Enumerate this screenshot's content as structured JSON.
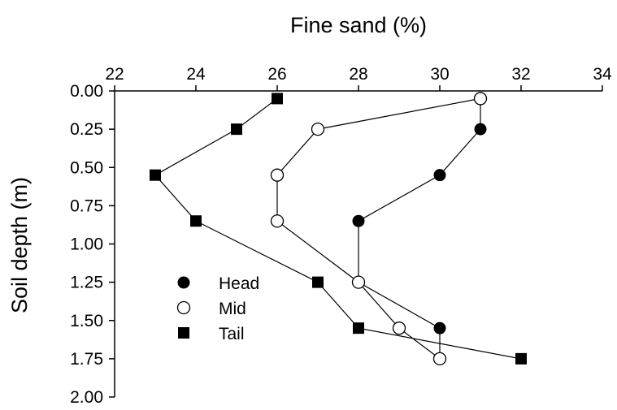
{
  "chart_data": {
    "type": "line",
    "title": "",
    "xlabel": "Fine sand (%)",
    "ylabel": "Soil depth (m)",
    "x_axis_position": "top",
    "y_axis_inverted": true,
    "xlim": [
      22,
      34
    ],
    "ylim": [
      0.0,
      2.0
    ],
    "x_ticks": [
      "22",
      "24",
      "26",
      "28",
      "30",
      "32",
      "34"
    ],
    "y_ticks": [
      "0.00",
      "0.25",
      "0.50",
      "0.75",
      "1.00",
      "1.25",
      "1.50",
      "1.75",
      "2.00"
    ],
    "grid": false,
    "legend_position": "bottom-left",
    "series": [
      {
        "name": "Head",
        "marker": "filled-circle",
        "x": [
          31,
          31,
          30,
          28,
          28,
          30,
          30
        ],
        "y": [
          0.05,
          0.25,
          0.55,
          0.85,
          1.25,
          1.55,
          1.75
        ]
      },
      {
        "name": "Mid",
        "marker": "open-circle",
        "x": [
          31,
          27,
          26,
          26,
          28,
          29,
          30
        ],
        "y": [
          0.05,
          0.25,
          0.55,
          0.85,
          1.25,
          1.55,
          1.75
        ]
      },
      {
        "name": "Tail",
        "marker": "filled-square",
        "x": [
          26,
          25,
          23,
          24,
          27,
          28,
          32
        ],
        "y": [
          0.05,
          0.25,
          0.55,
          0.85,
          1.25,
          1.55,
          1.75
        ]
      }
    ]
  }
}
